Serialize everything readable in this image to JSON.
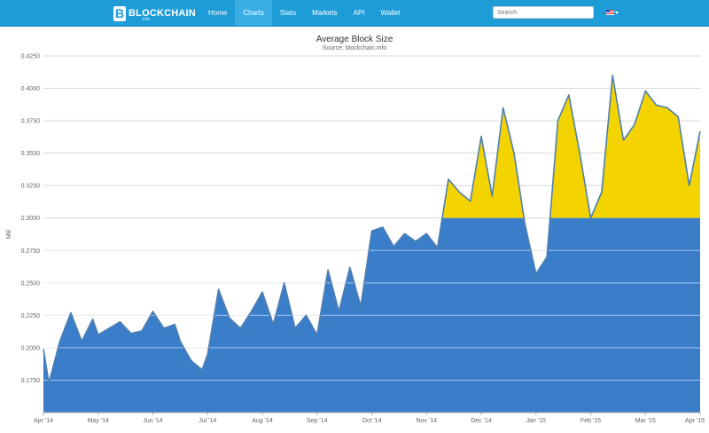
{
  "nav": {
    "logo_text": "BLOCKCHAIN",
    "logo_sub": "info",
    "items": [
      {
        "label": "Home"
      },
      {
        "label": "Charts"
      },
      {
        "label": "Stats"
      },
      {
        "label": "Markets"
      },
      {
        "label": "API"
      },
      {
        "label": "Wallet"
      }
    ],
    "search_placeholder": "Search",
    "language_icon": "us-flag-icon"
  },
  "colors": {
    "navbar": "#1d9cd8",
    "area_blue": "#3a7dc9",
    "area_yellow": "#f3d400",
    "line": "#4f7fb1"
  },
  "chart_data": {
    "type": "area",
    "title": "Average Block Size",
    "subtitle": "Source: blockchain.info",
    "ylabel": "MB",
    "ylim": [
      0.15,
      0.425
    ],
    "y_ticks": [
      "0.1750",
      "0.2000",
      "0.2250",
      "0.2500",
      "0.2750",
      "0.3000",
      "0.3250",
      "0.3500",
      "0.3750",
      "0.4000",
      "0.4250"
    ],
    "x_ticks": [
      "Apr '14",
      "May '14",
      "Jun '14",
      "Jul '14",
      "Aug '14",
      "Sep '14",
      "Oct '14",
      "Nov '14",
      "Dec '14",
      "Jan '15",
      "Feb '15",
      "Mar '15",
      "Apr '15"
    ],
    "threshold": 0.3,
    "series": [
      {
        "x": [
          0,
          0.1,
          0.3,
          0.5,
          0.7,
          0.9,
          1.0,
          1.2,
          1.4,
          1.6,
          1.8,
          2.0,
          2.2,
          2.4,
          2.5,
          2.7,
          2.9,
          3.0,
          3.2,
          3.4,
          3.6,
          3.8,
          4.0,
          4.2,
          4.4,
          4.6,
          4.8,
          5.0,
          5.2,
          5.4,
          5.6,
          5.8,
          6.0,
          6.2,
          6.4,
          6.6,
          6.8,
          7.0,
          7.2,
          7.4,
          7.6,
          7.8,
          8.0,
          8.2,
          8.4,
          8.6,
          8.8,
          9.0,
          9.2,
          9.4,
          9.6,
          9.8,
          10.0,
          10.2,
          10.4,
          10.6,
          10.8,
          11.0,
          11.2,
          11.4,
          11.6,
          11.8,
          12.0
        ],
        "y": [
          0.199,
          0.173,
          0.205,
          0.227,
          0.205,
          0.222,
          0.21,
          0.215,
          0.22,
          0.211,
          0.213,
          0.228,
          0.215,
          0.218,
          0.205,
          0.19,
          0.183,
          0.195,
          0.245,
          0.223,
          0.215,
          0.228,
          0.243,
          0.218,
          0.25,
          0.215,
          0.225,
          0.21,
          0.26,
          0.228,
          0.262,
          0.232,
          0.29,
          0.293,
          0.278,
          0.288,
          0.282,
          0.288,
          0.277,
          0.33,
          0.32,
          0.313,
          0.363,
          0.317,
          0.385,
          0.35,
          0.295,
          0.257,
          0.27,
          0.375,
          0.395,
          0.35,
          0.3,
          0.32,
          0.41,
          0.36,
          0.372,
          0.398,
          0.387,
          0.385,
          0.378,
          0.325,
          0.367
        ]
      }
    ]
  }
}
